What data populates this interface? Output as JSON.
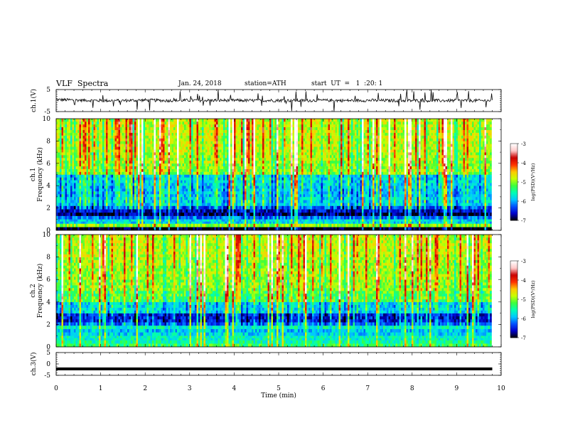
{
  "header": {
    "title": "VLF  Spectra",
    "date": "Jan. 24, 2018",
    "station": "station=ATH",
    "start_ut": "start  UT  =   1  :20: 1"
  },
  "colors": {
    "colormap": [
      "#000000",
      "#0000c8",
      "#0050ff",
      "#00c8ff",
      "#00ffb4",
      "#3cff3c",
      "#c8ff00",
      "#ffc800",
      "#ff3200",
      "#c80000",
      "#ffc8c8",
      "#ffffff"
    ],
    "trace": "#000000"
  },
  "chart_data": [
    {
      "type": "line",
      "panel": "ch1-waveform",
      "ylabel": "ch.1(V)",
      "ylim": [
        -5,
        5
      ],
      "yticks": [
        "5",
        "-5"
      ],
      "series": [
        {
          "x": [
            0,
            0.5,
            1,
            1.5,
            2,
            2.5,
            3,
            3.5,
            4,
            4.5,
            5,
            5.5,
            6,
            6.5,
            7,
            7.5,
            8,
            8.5,
            9,
            9.5,
            9.8
          ],
          "values": [
            0.4,
            0.2,
            0.0,
            0.0,
            0.2,
            0.0,
            0.1,
            0.1,
            0.1,
            0.0,
            0.1,
            0.0,
            0.1,
            0.0,
            0.1,
            0.0,
            0.0,
            0.0,
            0.0,
            0.0,
            0.0
          ]
        }
      ]
    },
    {
      "type": "heatmap",
      "panel": "ch1-spectrogram",
      "ylabel": "ch.1\nFrequency  (kHz)",
      "ylim": [
        0,
        10
      ],
      "yticks": [
        "0",
        "2",
        "4",
        "6",
        "8",
        "10"
      ],
      "freq_bands_khz": [
        0,
        0.3,
        0.6,
        1.0,
        1.3,
        1.6,
        1.9,
        2.2,
        3.0,
        4.0,
        5.0,
        6.0,
        7.0,
        8.0,
        9.0,
        10.0
      ],
      "band_log_psd": [
        -7.0,
        -5.0,
        -5.8,
        -6.2,
        -6.8,
        -6.6,
        -6.3,
        -5.8,
        -5.9,
        -5.8,
        -5.0,
        -4.9,
        -4.8,
        -4.8,
        -4.8
      ],
      "colorbar": {
        "label": "log(PSD)(V²/Hz)",
        "range": [
          -7,
          -3
        ],
        "ticks": [
          "-3",
          "-4",
          "-5",
          "-6",
          "-7"
        ]
      }
    },
    {
      "type": "heatmap",
      "panel": "ch2-spectrogram",
      "ylabel": "ch.2\nFrequency  (kHz)",
      "ylim": [
        0,
        10
      ],
      "yticks": [
        "0",
        "2",
        "4",
        "6",
        "8",
        "10"
      ],
      "freq_bands_khz": [
        0,
        0.3,
        0.6,
        1.0,
        1.3,
        1.6,
        1.9,
        2.2,
        3.0,
        4.0,
        5.0,
        6.0,
        7.0,
        8.0,
        9.0,
        10.0
      ],
      "band_log_psd": [
        -5.3,
        -5.5,
        -5.6,
        -5.8,
        -5.9,
        -5.6,
        -6.2,
        -6.5,
        -5.8,
        -5.2,
        -5.0,
        -4.9,
        -4.9,
        -4.8,
        -4.8
      ],
      "colorbar": {
        "label": "log(PSD)(V²/Hz)",
        "range": [
          -7,
          -3
        ],
        "ticks": [
          "-3",
          "-4",
          "-5",
          "-6",
          "-7"
        ]
      }
    },
    {
      "type": "line",
      "panel": "ch3-waveform",
      "ylabel": "ch.3(V)",
      "ylim": [
        -5,
        5
      ],
      "yticks": [
        "5",
        "0",
        "-5"
      ],
      "xlabel": "Time  (min)",
      "xlim": [
        0,
        10
      ],
      "xticks": [
        "0",
        "1",
        "2",
        "3",
        "4",
        "5",
        "6",
        "7",
        "8",
        "9",
        "10"
      ],
      "series": [
        {
          "x": [
            0,
            9.8
          ],
          "values": [
            -2.2,
            -2.2
          ]
        }
      ]
    }
  ]
}
